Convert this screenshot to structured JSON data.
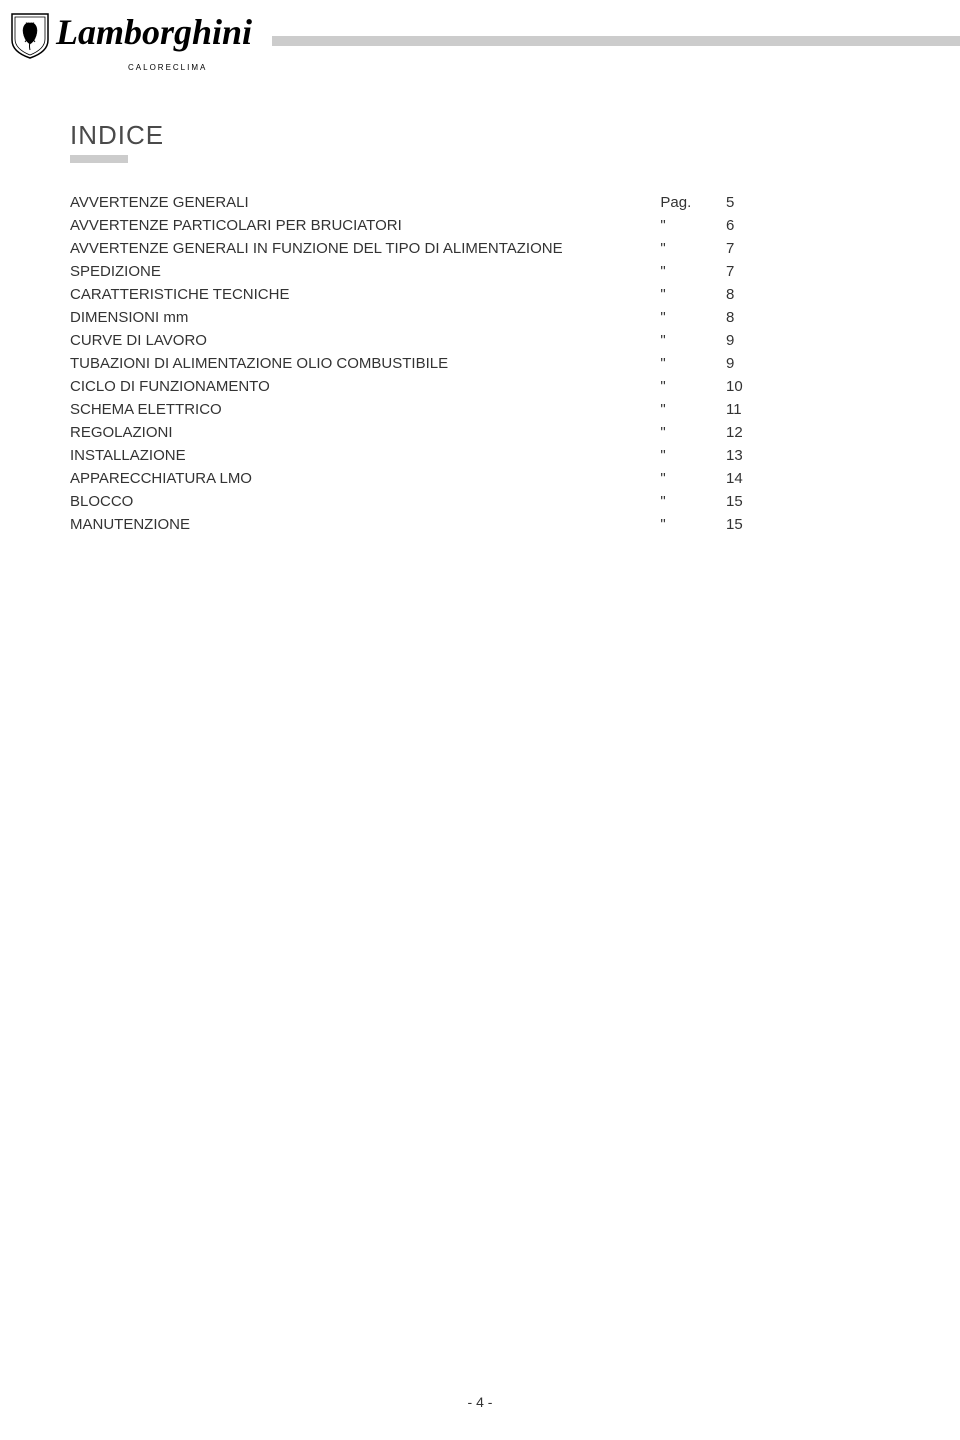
{
  "brand": {
    "name": "Lamborghini",
    "subtitle": "CALORECLIMA"
  },
  "section_title": "INDICE",
  "page_label": "Pag.",
  "ditto_mark": "\"",
  "toc": [
    {
      "label": "AVVERTENZE GENERALI",
      "mark": "Pag.",
      "page": "5"
    },
    {
      "label": "AVVERTENZE PARTICOLARI PER BRUCIATORI",
      "mark": "\"",
      "page": "6"
    },
    {
      "label": "AVVERTENZE GENERALI IN FUNZIONE DEL TIPO DI ALIMENTAZIONE",
      "mark": "\"",
      "page": "7"
    },
    {
      "label": "SPEDIZIONE",
      "mark": "\"",
      "page": "7"
    },
    {
      "label": "CARATTERISTICHE TECNICHE",
      "mark": "\"",
      "page": "8"
    },
    {
      "label": "DIMENSIONI mm",
      "mark": "\"",
      "page": "8"
    },
    {
      "label": "CURVE DI LAVORO",
      "mark": "\"",
      "page": "9"
    },
    {
      "label": "TUBAZIONI DI ALIMENTAZIONE OLIO COMBUSTIBILE",
      "mark": "\"",
      "page": "9"
    },
    {
      "label": "CICLO DI FUNZIONAMENTO",
      "mark": "\"",
      "page": "10"
    },
    {
      "label": "SCHEMA ELETTRICO",
      "mark": "\"",
      "page": "11"
    },
    {
      "label": "REGOLAZIONI",
      "mark": "\"",
      "page": "12"
    },
    {
      "label": "INSTALLAZIONE",
      "mark": "\"",
      "page": "13"
    },
    {
      "label": "APPARECCHIATURA LMO",
      "mark": "\"",
      "page": "14"
    },
    {
      "label": "BLOCCO",
      "mark": "\"",
      "page": "15"
    },
    {
      "label": "MANUTENZIONE",
      "mark": "\"",
      "page": "15"
    }
  ],
  "footer": "- 4 -",
  "colors": {
    "line_gray": "#cccccc",
    "text_gray": "#4a4a4a",
    "body_text": "#333333",
    "background": "#ffffff"
  }
}
